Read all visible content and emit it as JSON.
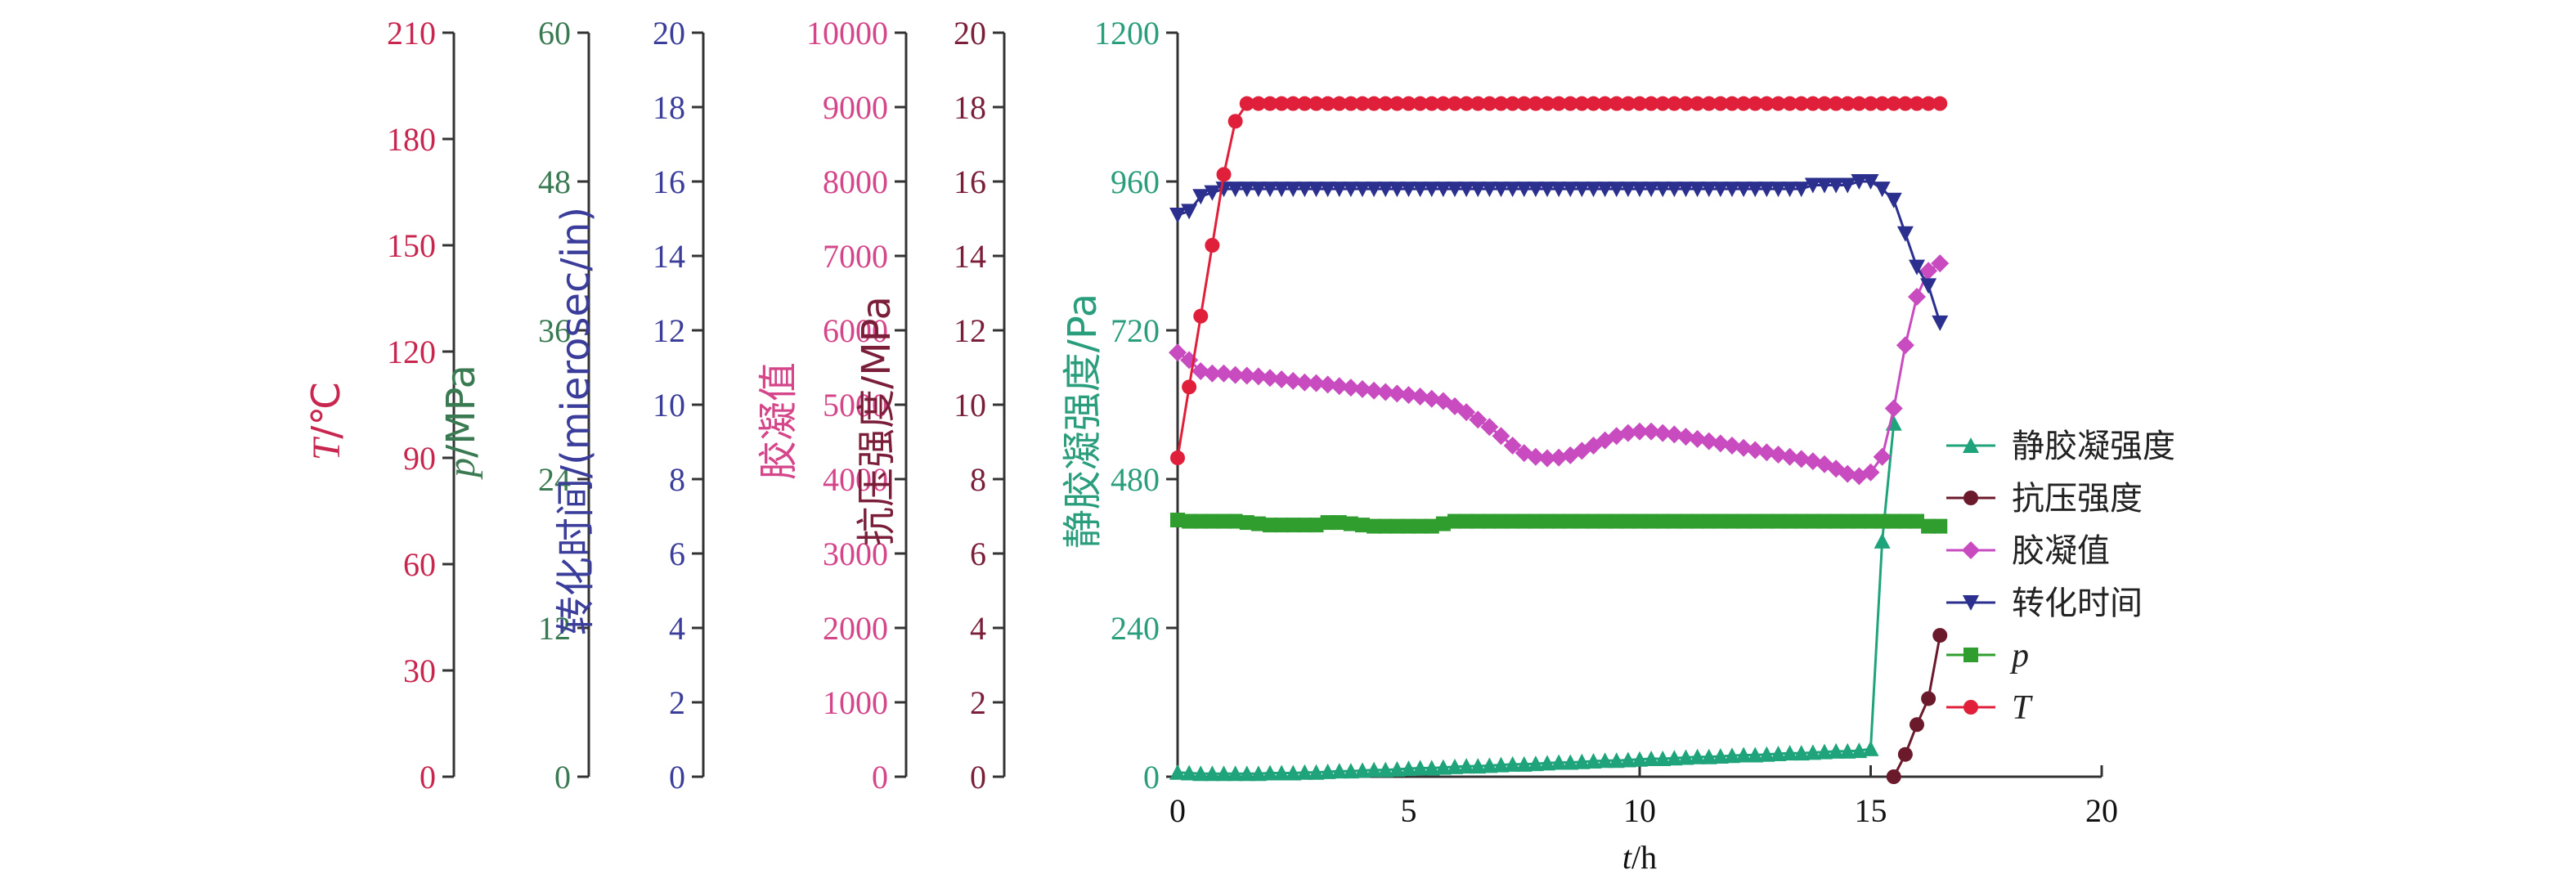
{
  "chart_data": {
    "type": "line",
    "x": [
      0,
      0.25,
      0.5,
      0.75,
      1,
      1.25,
      1.5,
      1.75,
      2,
      2.25,
      2.5,
      2.75,
      3,
      3.25,
      3.5,
      3.75,
      4,
      4.25,
      4.5,
      4.75,
      5,
      5.25,
      5.5,
      5.75,
      6,
      6.25,
      6.5,
      6.75,
      7,
      7.25,
      7.5,
      7.75,
      8,
      8.25,
      8.5,
      8.75,
      9,
      9.25,
      9.5,
      9.75,
      10,
      10.25,
      10.5,
      10.75,
      11,
      11.25,
      11.5,
      11.75,
      12,
      12.25,
      12.5,
      12.75,
      13,
      13.25,
      13.5,
      13.75,
      14,
      14.25,
      14.5,
      14.75,
      15,
      15.25,
      15.5,
      15.75,
      16,
      16.25,
      16.5
    ],
    "xlabel": "t/h",
    "xlim": [
      0,
      20
    ],
    "xticks": [
      "0",
      "5",
      "10",
      "15",
      "20"
    ],
    "y_axes": [
      {
        "id": "T",
        "label_italic": "T",
        "label_rest": "/℃",
        "range": [
          0,
          210
        ],
        "ticks": [
          "0",
          "30",
          "60",
          "90",
          "120",
          "150",
          "180",
          "210"
        ],
        "color": "#c8264f"
      },
      {
        "id": "p",
        "label_italic": "p",
        "label_rest": "/MPa",
        "range": [
          0,
          60
        ],
        "ticks": [
          "0",
          "12",
          "24",
          "36",
          "48",
          "60"
        ],
        "color": "#3a7a52"
      },
      {
        "id": "transit",
        "label_italic": "",
        "label_rest": "转化时间/(mierosec/in)",
        "range": [
          0,
          20
        ],
        "ticks": [
          "0",
          "2",
          "4",
          "6",
          "8",
          "10",
          "12",
          "14",
          "16",
          "18",
          "20"
        ],
        "color": "#3b3d9a"
      },
      {
        "id": "gel",
        "label_italic": "",
        "label_rest": "胶凝值",
        "range": [
          0,
          10000
        ],
        "ticks": [
          "0",
          "1000",
          "2000",
          "3000",
          "4000",
          "5000",
          "6000",
          "7000",
          "8000",
          "9000",
          "10000"
        ],
        "color": "#d4458a"
      },
      {
        "id": "comp",
        "label_italic": "",
        "label_rest": "抗压强度/MPa",
        "range": [
          0,
          20
        ],
        "ticks": [
          "0",
          "2",
          "4",
          "6",
          "8",
          "10",
          "12",
          "14",
          "16",
          "18",
          "20"
        ],
        "color": "#7a1e3a"
      },
      {
        "id": "sgs",
        "label_italic": "",
        "label_rest": "静胶凝强度/Pa",
        "range": [
          0,
          1200
        ],
        "ticks": [
          "0",
          "240",
          "480",
          "720",
          "960",
          "1200"
        ],
        "color": "#2a9d7c"
      }
    ],
    "series": [
      {
        "name": "静胶凝强度",
        "axis": "sgs",
        "marker": "triangle-up",
        "color": "#1fa37a",
        "values": [
          7,
          6,
          5,
          5,
          5,
          5,
          5,
          5,
          6,
          6,
          6,
          7,
          7,
          8,
          9,
          9,
          10,
          11,
          11,
          12,
          13,
          14,
          14,
          15,
          16,
          17,
          17,
          18,
          19,
          20,
          20,
          21,
          22,
          23,
          23,
          24,
          25,
          26,
          26,
          27,
          28,
          29,
          29,
          30,
          31,
          32,
          32,
          33,
          34,
          35,
          35,
          36,
          37,
          38,
          38,
          39,
          40,
          41,
          41,
          42,
          45,
          380,
          570,
          null,
          null,
          null,
          null
        ]
      },
      {
        "name": "抗压强度",
        "axis": "comp",
        "marker": "circle",
        "color": "#6b1a2c",
        "values": [
          null,
          null,
          null,
          null,
          null,
          null,
          null,
          null,
          null,
          null,
          null,
          null,
          null,
          null,
          null,
          null,
          null,
          null,
          null,
          null,
          null,
          null,
          null,
          null,
          null,
          null,
          null,
          null,
          null,
          null,
          null,
          null,
          null,
          null,
          null,
          null,
          null,
          null,
          null,
          null,
          null,
          null,
          null,
          null,
          null,
          null,
          null,
          null,
          null,
          null,
          null,
          null,
          null,
          null,
          null,
          null,
          null,
          null,
          null,
          null,
          null,
          null,
          0,
          0.6,
          1.4,
          2.1,
          3.8
        ]
      },
      {
        "name": "胶凝值",
        "axis": "gel",
        "marker": "diamond",
        "color": "#c84cc0",
        "values": [
          5700,
          5600,
          5450,
          5420,
          5420,
          5400,
          5390,
          5380,
          5360,
          5340,
          5320,
          5300,
          5290,
          5270,
          5250,
          5230,
          5210,
          5190,
          5170,
          5150,
          5130,
          5110,
          5080,
          5050,
          4980,
          4900,
          4800,
          4700,
          4580,
          4450,
          4350,
          4300,
          4280,
          4290,
          4320,
          4380,
          4450,
          4520,
          4580,
          4620,
          4640,
          4640,
          4620,
          4600,
          4570,
          4540,
          4510,
          4480,
          4450,
          4420,
          4390,
          4360,
          4330,
          4300,
          4270,
          4240,
          4200,
          4140,
          4070,
          4040,
          4090,
          4300,
          4950,
          5800,
          6450,
          6800,
          6900
        ]
      },
      {
        "name": "转化时间",
        "axis": "transit",
        "marker": "triangle-down",
        "color": "#2b2f8e",
        "values": [
          15.1,
          15.2,
          15.6,
          15.7,
          15.8,
          15.8,
          15.8,
          15.8,
          15.8,
          15.8,
          15.8,
          15.8,
          15.8,
          15.8,
          15.8,
          15.8,
          15.8,
          15.8,
          15.8,
          15.8,
          15.8,
          15.8,
          15.8,
          15.8,
          15.8,
          15.8,
          15.8,
          15.8,
          15.8,
          15.8,
          15.8,
          15.8,
          15.8,
          15.8,
          15.8,
          15.8,
          15.8,
          15.8,
          15.8,
          15.8,
          15.8,
          15.8,
          15.8,
          15.8,
          15.8,
          15.8,
          15.8,
          15.8,
          15.8,
          15.8,
          15.8,
          15.8,
          15.8,
          15.8,
          15.8,
          15.9,
          15.9,
          15.9,
          15.9,
          16,
          16,
          15.8,
          15.5,
          14.6,
          13.7,
          13.2,
          12.2
        ]
      },
      {
        "name": "p",
        "axis": "p",
        "marker": "square",
        "color": "#2f9e2f",
        "values": [
          20.7,
          20.6,
          20.6,
          20.6,
          20.6,
          20.6,
          20.5,
          20.4,
          20.3,
          20.3,
          20.3,
          20.3,
          20.3,
          20.5,
          20.5,
          20.4,
          20.3,
          20.2,
          20.2,
          20.2,
          20.2,
          20.2,
          20.2,
          20.4,
          20.6,
          20.6,
          20.6,
          20.6,
          20.6,
          20.6,
          20.6,
          20.6,
          20.6,
          20.6,
          20.6,
          20.6,
          20.6,
          20.6,
          20.6,
          20.6,
          20.6,
          20.6,
          20.6,
          20.6,
          20.6,
          20.6,
          20.6,
          20.6,
          20.6,
          20.6,
          20.6,
          20.6,
          20.6,
          20.6,
          20.6,
          20.6,
          20.6,
          20.6,
          20.6,
          20.6,
          20.6,
          20.6,
          20.6,
          20.6,
          20.6,
          20.2,
          20.2
        ]
      },
      {
        "name": "T",
        "axis": "T",
        "marker": "circle",
        "color": "#e0203a",
        "values": [
          90,
          110,
          130,
          150,
          170,
          185,
          190,
          190,
          190,
          190,
          190,
          190,
          190,
          190,
          190,
          190,
          190,
          190,
          190,
          190,
          190,
          190,
          190,
          190,
          190,
          190,
          190,
          190,
          190,
          190,
          190,
          190,
          190,
          190,
          190,
          190,
          190,
          190,
          190,
          190,
          190,
          190,
          190,
          190,
          190,
          190,
          190,
          190,
          190,
          190,
          190,
          190,
          190,
          190,
          190,
          190,
          190,
          190,
          190,
          190,
          190,
          190,
          190,
          190,
          190,
          190,
          190
        ]
      }
    ],
    "legend": "center-right",
    "grid": false
  }
}
